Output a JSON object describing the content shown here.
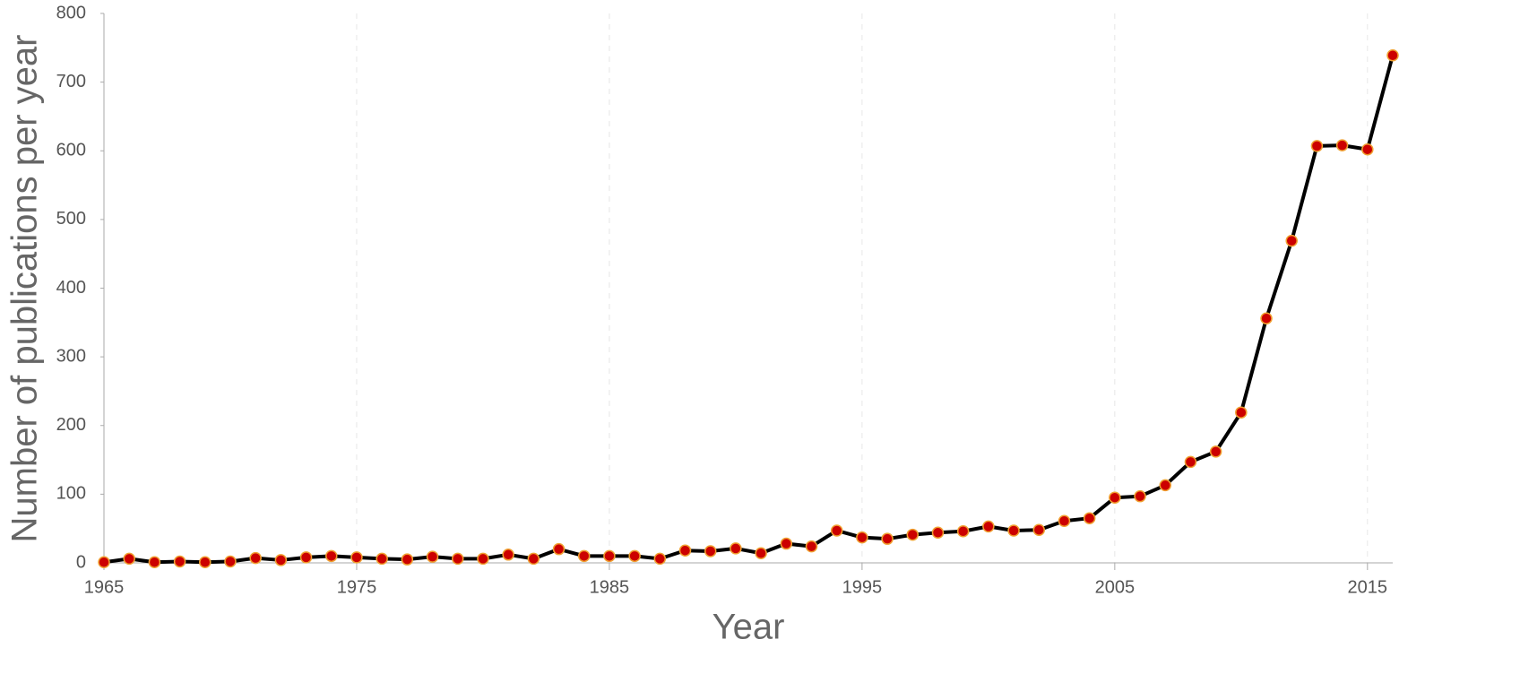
{
  "chart_data": {
    "type": "line",
    "xlabel": "Year",
    "ylabel": "Number of publications per year",
    "x": [
      1965,
      1966,
      1967,
      1968,
      1969,
      1970,
      1971,
      1972,
      1973,
      1974,
      1975,
      1976,
      1977,
      1978,
      1979,
      1980,
      1981,
      1982,
      1983,
      1984,
      1985,
      1986,
      1987,
      1988,
      1989,
      1990,
      1991,
      1992,
      1993,
      1994,
      1995,
      1996,
      1997,
      1998,
      1999,
      2000,
      2001,
      2002,
      2003,
      2004,
      2005,
      2006,
      2007,
      2008,
      2009,
      2010,
      2011,
      2012,
      2013,
      2014,
      2015,
      2016
    ],
    "series": [
      {
        "color": "#000000",
        "marker_color": "#cc0000",
        "marker_edge": "#f0a030",
        "values": [
          1,
          6,
          1,
          2,
          1,
          2,
          7,
          4,
          8,
          10,
          8,
          6,
          5,
          9,
          6,
          6,
          12,
          6,
          20,
          10,
          10,
          10,
          6,
          18,
          17,
          21,
          14,
          28,
          24,
          47,
          37,
          35,
          41,
          44,
          46,
          53,
          47,
          48,
          61,
          65,
          95,
          97,
          113,
          147,
          162,
          219,
          356,
          469,
          607,
          608,
          602,
          739
        ]
      }
    ],
    "xlim": [
      1965,
      2016
    ],
    "xticks": [
      1965,
      1975,
      1985,
      1995,
      2005,
      2015
    ],
    "ylim": [
      0,
      800
    ],
    "yticks": [
      0,
      100,
      200,
      300,
      400,
      500,
      600,
      700,
      800
    ],
    "grid": true
  }
}
